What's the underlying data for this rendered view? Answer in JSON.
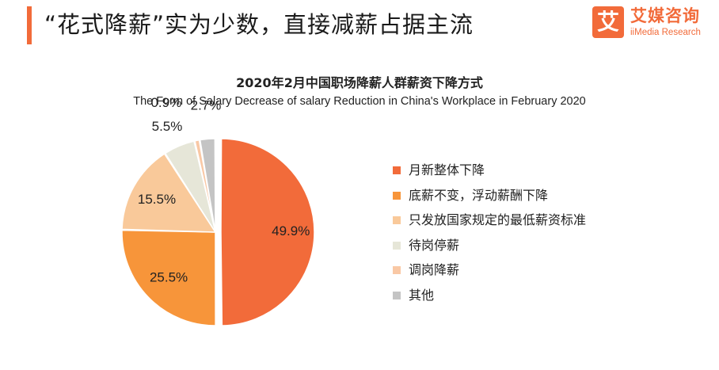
{
  "header": {
    "headline": "“花式降薪”实为少数，直接减薪占据主流",
    "logo_mark": "艾",
    "logo_cn": "艾媒咨询",
    "logo_en": "iiMedia Research"
  },
  "colors": {
    "accent": "#f26b3a"
  },
  "chart_data": {
    "type": "pie",
    "title": "2020年2月中国职场降薪人群薪资下降方式",
    "subtitle": "The Form of Salary Decrease of salary Reduction in China's Workplace in February 2020",
    "legend_position": "right",
    "unit": "%",
    "slices": [
      {
        "name": "月新整体下降",
        "value": 49.9,
        "label": "49.9%",
        "color": "#f26b3a"
      },
      {
        "name": "底薪不变，浮动薪酬下降",
        "value": 25.5,
        "label": "25.5%",
        "color": "#f7953a"
      },
      {
        "name": "只发放国家规定的最低薪资标准",
        "value": 15.5,
        "label": "15.5%",
        "color": "#f9c99a"
      },
      {
        "name": "待岗停薪",
        "value": 5.5,
        "label": "5.5%",
        "color": "#e6e6d8"
      },
      {
        "name": "调岗降薪",
        "value": 0.9,
        "label": "0.9%",
        "color": "#f9c8a5"
      },
      {
        "name": "其他",
        "value": 2.7,
        "label": "2.7%",
        "color": "#c4c4c4"
      }
    ]
  }
}
